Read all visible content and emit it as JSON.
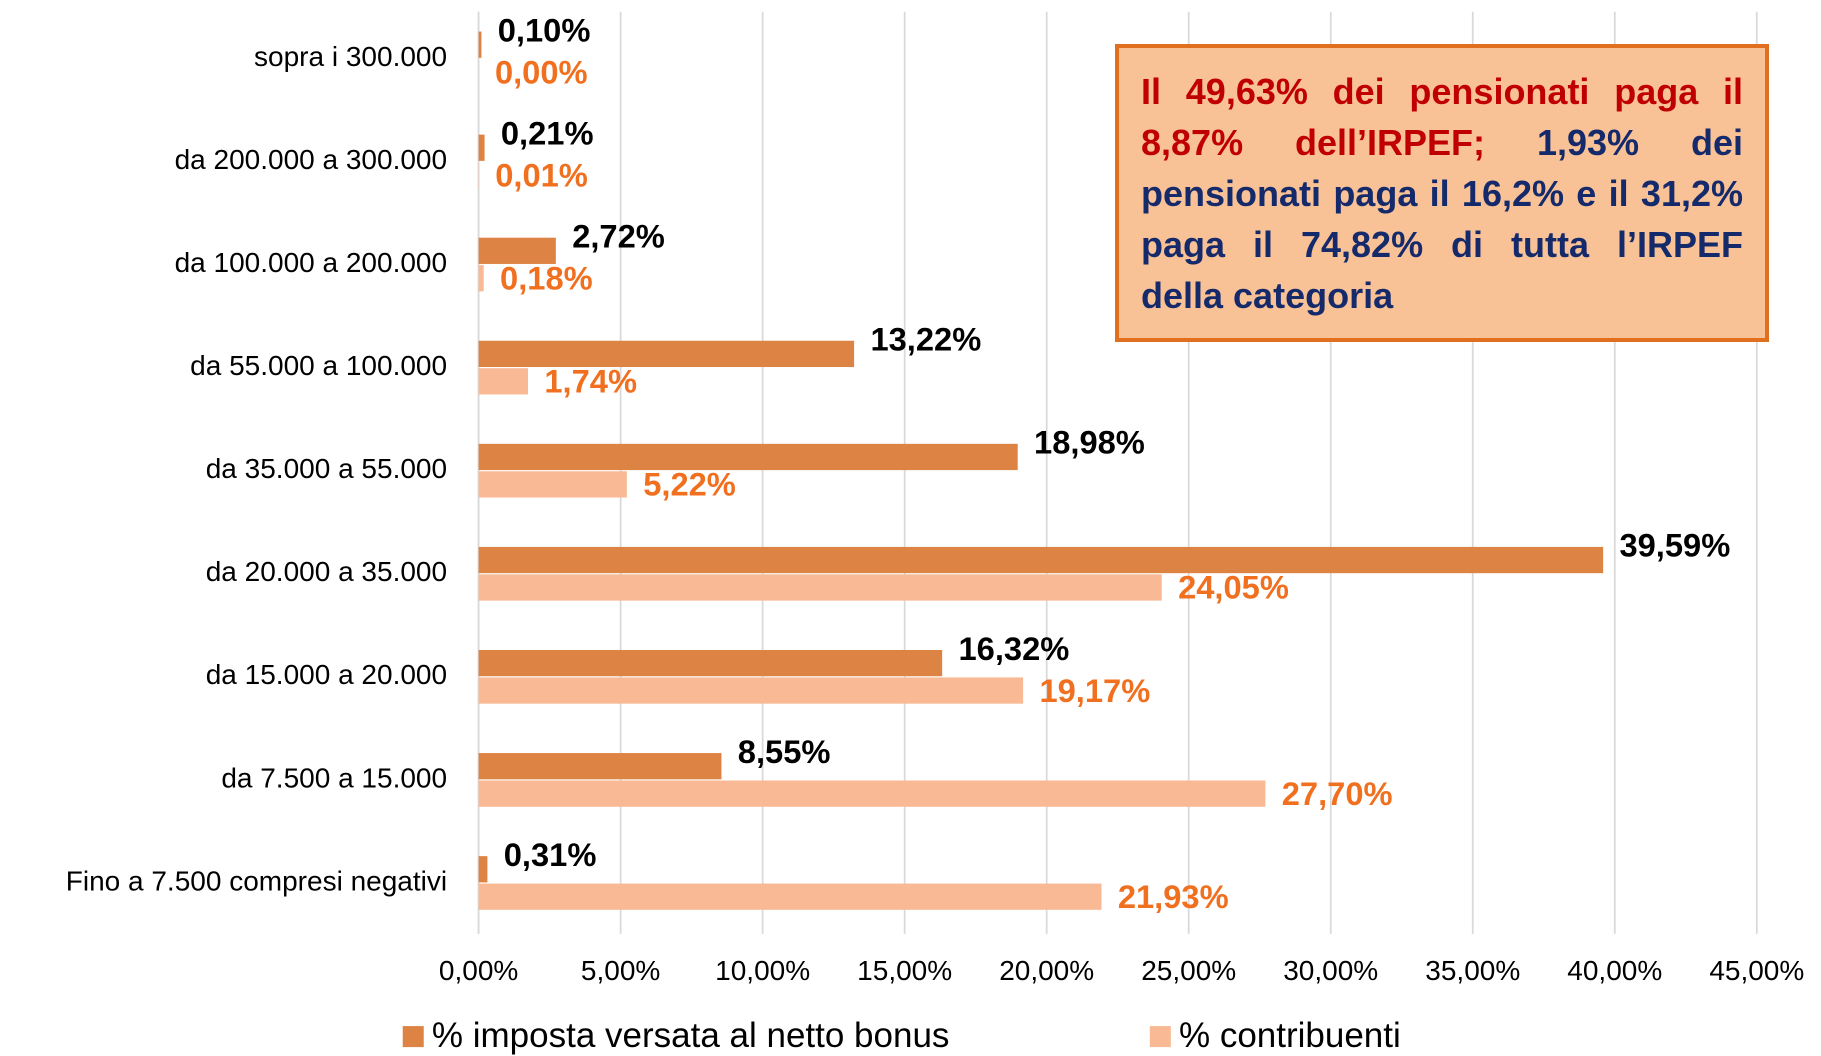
{
  "chart_data": {
    "type": "bar",
    "orientation": "horizontal",
    "categories": [
      "sopra i 300.000",
      "da 200.000 a 300.000",
      "da 100.000 a 200.000",
      "da 55.000 a 100.000",
      "da 35.000 a 55.000",
      "da 20.000 a 35.000",
      "da 15.000 a 20.000",
      "da 7.500 a 15.000",
      "Fino a 7.500 compresi negativi"
    ],
    "series": [
      {
        "name": "% imposta versata al netto bonus",
        "color": "#dd8444",
        "label_color": "#000000",
        "values": [
          0.1,
          0.21,
          2.72,
          13.22,
          18.98,
          39.59,
          16.32,
          8.55,
          0.31
        ],
        "value_labels": [
          "0,10%",
          "0,21%",
          "2,72%",
          "13,22%",
          "18,98%",
          "39,59%",
          "16,32%",
          "8,55%",
          "0,31%"
        ]
      },
      {
        "name": "% contribuenti",
        "color": "#f8b994",
        "label_color": "#f07020",
        "values": [
          0.0,
          0.01,
          0.18,
          1.74,
          5.22,
          24.05,
          19.17,
          27.7,
          21.93
        ],
        "value_labels": [
          "0,00%",
          "0,01%",
          "0,18%",
          "1,74%",
          "5,22%",
          "24,05%",
          "19,17%",
          "27,70%",
          "21,93%"
        ]
      }
    ],
    "xlim": [
      0,
      45
    ],
    "xticks": [
      {
        "value": 0,
        "label": "0,00%"
      },
      {
        "value": 5,
        "label": "5,00%"
      },
      {
        "value": 10,
        "label": "10,00%"
      },
      {
        "value": 15,
        "label": "15,00%"
      },
      {
        "value": 20,
        "label": "20,00%"
      },
      {
        "value": 25,
        "label": "25,00%"
      },
      {
        "value": 30,
        "label": "30,00%"
      },
      {
        "value": 35,
        "label": "35,00%"
      },
      {
        "value": 40,
        "label": "40,00%"
      },
      {
        "value": 45,
        "label": "45,00%"
      }
    ],
    "grid": true,
    "legend": "bottom",
    "annotation": [
      "Il 49,63% dei pensionati paga il 8,87% dell’IRPEF;",
      "1,93% dei pensionati paga il 16,2% e il 31,2% paga il 74,82% di tutta l’IRPEF della categoria"
    ]
  }
}
